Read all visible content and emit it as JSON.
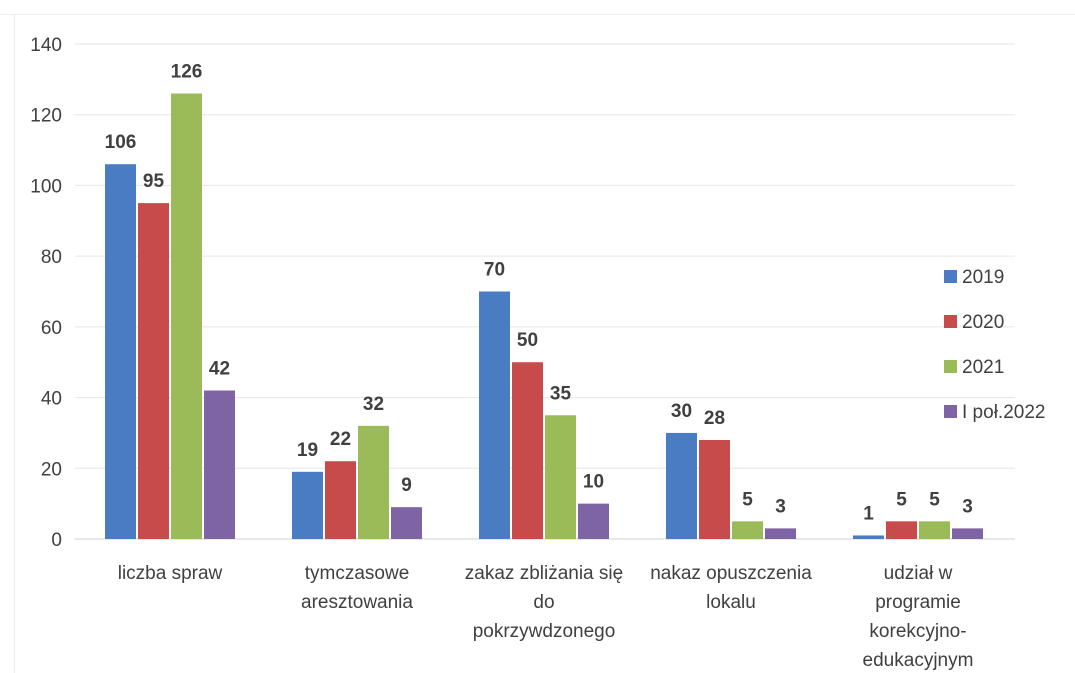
{
  "chart_data": {
    "type": "bar",
    "title": "",
    "xlabel": "",
    "ylabel": "",
    "ylim": [
      0,
      140
    ],
    "yticks": [
      0,
      20,
      40,
      60,
      80,
      100,
      120,
      140
    ],
    "grid": true,
    "legend_position": "right",
    "categories": [
      [
        "liczba spraw"
      ],
      [
        "tymczasowe",
        "aresztowania"
      ],
      [
        "zakaz zbliżania się",
        "do",
        "pokrzywdzonego"
      ],
      [
        "nakaz opuszczenia",
        "lokalu"
      ],
      [
        "udział w",
        "programie",
        "korekcyjno-",
        "edukacyjnym"
      ]
    ],
    "series": [
      {
        "name": "2019",
        "color": "#4a7cc4",
        "values": [
          106,
          19,
          70,
          30,
          1
        ]
      },
      {
        "name": "2020",
        "color": "#c84b4b",
        "values": [
          95,
          22,
          50,
          28,
          5
        ]
      },
      {
        "name": "2021",
        "color": "#9bbb59",
        "values": [
          126,
          32,
          35,
          5,
          5
        ]
      },
      {
        "name": "I poł.2022",
        "color": "#7e63a5",
        "values": [
          42,
          9,
          10,
          3,
          3
        ]
      }
    ]
  }
}
